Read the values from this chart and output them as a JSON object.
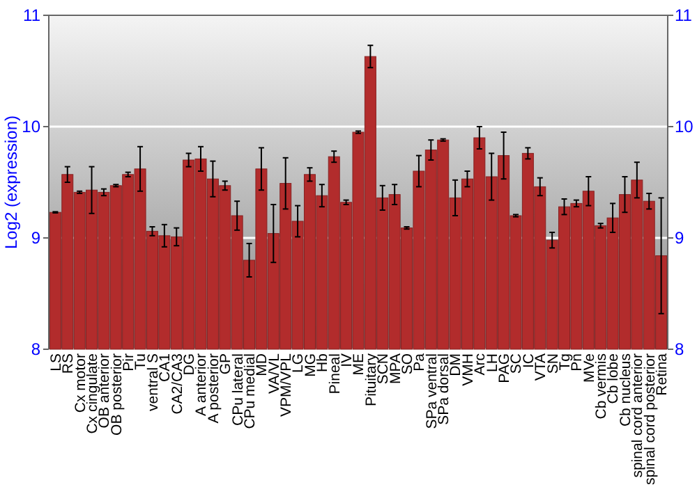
{
  "chart_data": {
    "type": "bar",
    "ylabel": "Log2 (expression)",
    "categories": [
      "LS",
      "RS",
      "Cx motor",
      "Cx cingulate",
      "OB anterior",
      "OB posterior",
      "Pir",
      "Tu",
      "ventral S",
      "CA1",
      "CA2/CA3",
      "DG",
      "A anterior",
      "A posterior",
      "GP",
      "CPu lateral",
      "CPu medial",
      "MD",
      "VA/VL",
      "VPM/VPL",
      "LG",
      "MG",
      "Hb",
      "Pineal",
      "IV",
      "ME",
      "Pituitary",
      "SCN",
      "MPA",
      "SO",
      "Pa",
      "SPa ventral",
      "SPa dorsal",
      "DM",
      "VMH",
      "Arc",
      "LH",
      "PAG",
      "SC",
      "IC",
      "VTA",
      "SN",
      "Tg",
      "Pn",
      "MVe",
      "Cb vermis",
      "Cb lobe",
      "Cb nucleus",
      "spinal cord anterior",
      "spinal cord posterior",
      "Retina"
    ],
    "values": [
      9.23,
      9.57,
      9.41,
      9.43,
      9.41,
      9.47,
      9.57,
      9.62,
      9.06,
      9.02,
      9.01,
      9.7,
      9.71,
      9.53,
      9.47,
      9.2,
      8.8,
      9.62,
      9.04,
      9.49,
      9.15,
      9.57,
      9.38,
      9.73,
      9.32,
      9.95,
      10.63,
      9.36,
      9.39,
      9.09,
      9.6,
      9.79,
      9.88,
      9.36,
      9.53,
      9.9,
      9.55,
      9.74,
      9.2,
      9.76,
      9.46,
      8.98,
      9.28,
      9.31,
      9.42,
      9.11,
      9.18,
      9.39,
      9.52,
      9.33,
      8.84
    ],
    "errors": [
      0.005,
      0.07,
      0.01,
      0.21,
      0.03,
      0.01,
      0.02,
      0.2,
      0.04,
      0.1,
      0.08,
      0.06,
      0.11,
      0.16,
      0.04,
      0.13,
      0.15,
      0.19,
      0.26,
      0.23,
      0.14,
      0.06,
      0.1,
      0.05,
      0.02,
      0.01,
      0.1,
      0.11,
      0.09,
      0.01,
      0.14,
      0.09,
      0.01,
      0.16,
      0.07,
      0.1,
      0.21,
      0.21,
      0.01,
      0.05,
      0.08,
      0.07,
      0.07,
      0.03,
      0.13,
      0.02,
      0.13,
      0.16,
      0.16,
      0.07,
      0.52
    ],
    "color": "#b22c2c",
    "ylim": [
      8,
      11
    ],
    "yticks": [
      8,
      9,
      10,
      11
    ],
    "y2lim": [
      8,
      11
    ],
    "y2ticks": [
      8,
      9,
      10,
      11
    ],
    "grid": "y"
  }
}
